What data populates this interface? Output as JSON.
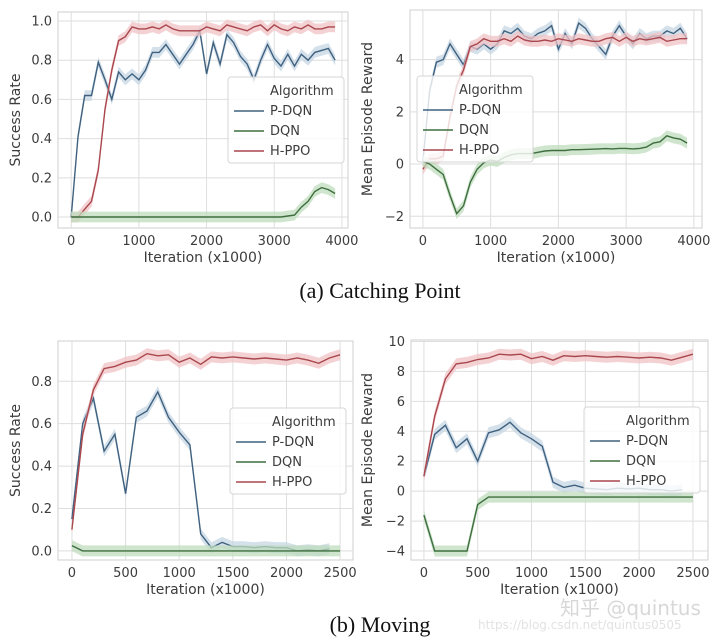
{
  "colors": {
    "P-DQN": {
      "line": "#3f617f",
      "band": "#c6d5e3"
    },
    "DQN": {
      "line": "#3e6e3e",
      "band": "#bfdcbd"
    },
    "H-PPO": {
      "line": "#a9474d",
      "band": "#f0c3c6"
    },
    "grid": "#dedede",
    "frame": "#cfcfcf"
  },
  "captions": {
    "a": "(a) Catching Point",
    "b": "(b) Moving"
  },
  "watermark": {
    "line1": "知乎 @quintus",
    "line2": "https://blog.csdn.net/quintus0505"
  },
  "chart_data": [
    {
      "type": "line",
      "subplot": "a-left",
      "xlabel": "Iteration (x1000)",
      "ylabel": "Success Rate",
      "xlim": [
        -195,
        4090
      ],
      "ylim": [
        -0.056,
        1.046
      ],
      "grid": true,
      "xticks": [
        0,
        1000,
        2000,
        3000,
        4000
      ],
      "xtick_labels": [
        "0",
        "1000",
        "2000",
        "3000",
        "4000"
      ],
      "yticks": [
        0,
        0.2,
        0.4,
        0.6,
        0.8,
        1.0
      ],
      "ytick_labels": [
        "0.0",
        "0.2",
        "0.4",
        "0.6",
        "0.8",
        "1.0"
      ],
      "legend": {
        "title": "Algorithm",
        "placement": "center-right"
      },
      "x": [
        0,
        100,
        200,
        300,
        400,
        500,
        600,
        700,
        800,
        900,
        1000,
        1100,
        1200,
        1300,
        1400,
        1500,
        1600,
        1700,
        1800,
        1900,
        2000,
        2100,
        2200,
        2300,
        2400,
        2500,
        2600,
        2700,
        2800,
        2900,
        3000,
        3100,
        3200,
        3300,
        3400,
        3500,
        3600,
        3700,
        3800,
        3900
      ],
      "series": [
        {
          "name": "P-DQN",
          "values": [
            0,
            0.41,
            0.62,
            0.62,
            0.79,
            0.7,
            0.6,
            0.74,
            0.7,
            0.73,
            0.7,
            0.75,
            0.84,
            0.84,
            0.88,
            0.83,
            0.78,
            0.83,
            0.88,
            0.95,
            0.73,
            0.89,
            0.78,
            0.93,
            0.89,
            0.82,
            0.78,
            0.7,
            0.8,
            0.88,
            0.81,
            0.77,
            0.83,
            0.77,
            0.83,
            0.8,
            0.84,
            0.85,
            0.86,
            0.8
          ]
        },
        {
          "name": "DQN",
          "values": [
            0,
            0,
            0,
            0,
            0,
            0,
            0,
            0,
            0,
            0,
            0,
            0,
            0,
            0,
            0,
            0,
            0,
            0,
            0,
            0,
            0,
            0,
            0,
            0,
            0,
            0,
            0,
            0,
            0,
            0,
            0,
            0,
            0.005,
            0.01,
            0.05,
            0.08,
            0.13,
            0.15,
            0.14,
            0.12
          ]
        },
        {
          "name": "H-PPO",
          "values": [
            0,
            0,
            0.04,
            0.08,
            0.24,
            0.55,
            0.75,
            0.9,
            0.92,
            0.97,
            0.96,
            0.96,
            0.97,
            0.96,
            0.98,
            0.96,
            0.95,
            0.95,
            0.95,
            0.95,
            0.97,
            0.96,
            0.95,
            0.98,
            0.97,
            0.96,
            0.95,
            0.97,
            0.98,
            0.95,
            0.98,
            0.96,
            0.95,
            0.97,
            0.96,
            0.98,
            0.96,
            0.96,
            0.97,
            0.97
          ]
        }
      ]
    },
    {
      "type": "line",
      "subplot": "a-right",
      "xlabel": "Iteration (x1000)",
      "ylabel": "Mean Episode Reward",
      "xlim": [
        -190,
        4120
      ],
      "ylim": [
        -2.45,
        5.9
      ],
      "grid": true,
      "xticks": [
        0,
        1000,
        2000,
        3000,
        4000
      ],
      "xtick_labels": [
        "0",
        "1000",
        "2000",
        "3000",
        "4000"
      ],
      "yticks": [
        -2,
        0,
        2,
        4
      ],
      "ytick_labels": [
        "−2",
        "0",
        "2",
        "4"
      ],
      "legend": {
        "title": "Algorithm",
        "placement": "center-left"
      },
      "x": [
        0,
        100,
        200,
        300,
        400,
        500,
        600,
        700,
        800,
        900,
        1000,
        1100,
        1200,
        1300,
        1400,
        1500,
        1600,
        1700,
        1800,
        1900,
        2000,
        2100,
        2200,
        2300,
        2400,
        2500,
        2600,
        2700,
        2800,
        2900,
        3000,
        3100,
        3200,
        3300,
        3400,
        3500,
        3600,
        3700,
        3800,
        3900
      ],
      "series": [
        {
          "name": "P-DQN",
          "values": [
            0.1,
            2.8,
            3.9,
            4.0,
            4.6,
            4.2,
            3.8,
            4.5,
            4.4,
            4.6,
            4.4,
            4.6,
            5.1,
            5.0,
            5.2,
            4.9,
            4.8,
            5.0,
            5.1,
            5.3,
            4.4,
            5.0,
            4.6,
            5.4,
            5.2,
            4.8,
            4.5,
            4.2,
            4.9,
            5.3,
            4.9,
            4.6,
            5.0,
            4.8,
            4.9,
            4.9,
            5.1,
            5.0,
            5.2,
            4.8
          ]
        },
        {
          "name": "DQN",
          "values": [
            0.1,
            0,
            -0.2,
            -0.4,
            -1.2,
            -1.9,
            -1.6,
            -0.7,
            -0.2,
            0.05,
            0.15,
            0.1,
            0.25,
            0.35,
            0.4,
            0.4,
            0.4,
            0.45,
            0.5,
            0.52,
            0.52,
            0.52,
            0.55,
            0.55,
            0.56,
            0.57,
            0.58,
            0.59,
            0.58,
            0.6,
            0.6,
            0.58,
            0.6,
            0.65,
            0.8,
            0.85,
            1.08,
            1.0,
            0.95,
            0.8
          ]
        },
        {
          "name": "H-PPO",
          "values": [
            -0.2,
            0.2,
            0.2,
            0.3,
            1.8,
            3.0,
            3.6,
            4.5,
            4.6,
            4.8,
            4.7,
            4.7,
            4.8,
            4.7,
            4.9,
            4.75,
            4.7,
            4.7,
            4.75,
            4.7,
            4.8,
            4.75,
            4.7,
            4.8,
            4.75,
            4.7,
            4.7,
            4.8,
            4.85,
            4.7,
            4.85,
            4.7,
            4.8,
            4.75,
            4.8,
            4.85,
            4.7,
            4.75,
            4.8,
            4.8
          ]
        }
      ]
    },
    {
      "type": "line",
      "subplot": "b-left",
      "xlabel": "Iteration (x1000)",
      "ylabel": "Success Rate",
      "xlim": [
        -130,
        2620
      ],
      "ylim": [
        -0.043,
        0.99
      ],
      "grid": true,
      "xticks": [
        0,
        500,
        1000,
        1500,
        2000,
        2500
      ],
      "xtick_labels": [
        "0",
        "500",
        "1000",
        "1500",
        "2000",
        "2500"
      ],
      "yticks": [
        0,
        0.2,
        0.4,
        0.6,
        0.8
      ],
      "ytick_labels": [
        "0.0",
        "0.2",
        "0.4",
        "0.6",
        "0.8"
      ],
      "legend": {
        "title": "Algorithm",
        "placement": "center-right"
      },
      "x": [
        0,
        100,
        200,
        300,
        400,
        500,
        600,
        700,
        800,
        900,
        1000,
        1100,
        1200,
        1300,
        1400,
        1500,
        1600,
        1700,
        1800,
        1900,
        2000,
        2100,
        2200,
        2300,
        2400,
        2500
      ],
      "series": [
        {
          "name": "P-DQN",
          "values": [
            0.15,
            0.6,
            0.72,
            0.47,
            0.55,
            0.27,
            0.63,
            0.66,
            0.75,
            0.63,
            0.56,
            0.5,
            0.08,
            0.015,
            0.04,
            0.02,
            0.02,
            0.015,
            0.02,
            0.015,
            0.015,
            0,
            0.005,
            0,
            0.01,
            null
          ]
        },
        {
          "name": "DQN",
          "values": [
            0.025,
            0,
            0,
            0,
            0,
            0,
            0,
            0,
            0,
            0,
            0,
            0,
            0,
            0,
            0,
            0,
            0,
            0,
            0,
            0,
            0,
            0,
            0,
            0,
            0,
            0
          ]
        },
        {
          "name": "H-PPO",
          "values": [
            0.1,
            0.55,
            0.76,
            0.86,
            0.87,
            0.89,
            0.9,
            0.93,
            0.92,
            0.925,
            0.89,
            0.91,
            0.88,
            0.915,
            0.91,
            0.915,
            0.91,
            0.905,
            0.91,
            0.905,
            0.9,
            0.91,
            0.9,
            0.885,
            0.91,
            0.925
          ]
        }
      ]
    },
    {
      "type": "line",
      "subplot": "b-right",
      "xlabel": "Iteration (x1000)",
      "ylabel": "Mean Episode Reward",
      "xlim": [
        -120,
        2640
      ],
      "ylim": [
        -4.6,
        10.1
      ],
      "grid": true,
      "xticks": [
        0,
        500,
        1000,
        1500,
        2000,
        2500
      ],
      "xtick_labels": [
        "0",
        "500",
        "1000",
        "1500",
        "2000",
        "2500"
      ],
      "yticks": [
        -4,
        -2,
        0,
        2,
        4,
        6,
        8,
        10
      ],
      "ytick_labels": [
        "−4",
        "−2",
        "0",
        "2",
        "4",
        "6",
        "8",
        "10"
      ],
      "legend": {
        "title": "Algorithm",
        "placement": "center-right"
      },
      "x": [
        0,
        100,
        200,
        300,
        400,
        500,
        600,
        700,
        800,
        900,
        1000,
        1100,
        1200,
        1300,
        1400,
        1500,
        1600,
        1700,
        1800,
        1900,
        2000,
        2100,
        2200,
        2300,
        2400,
        2500
      ],
      "series": [
        {
          "name": "P-DQN",
          "values": [
            1.0,
            3.8,
            4.4,
            2.9,
            3.5,
            2.0,
            3.9,
            4.1,
            4.6,
            3.9,
            3.5,
            3.0,
            0.6,
            0.25,
            0.4,
            0.2,
            0.15,
            0.1,
            0.2,
            0.15,
            0.2,
            0.1,
            0.1,
            0.0,
            0.1,
            null
          ]
        },
        {
          "name": "DQN",
          "values": [
            -1.6,
            -4,
            -4,
            -4,
            -4,
            -0.9,
            -0.4,
            -0.4,
            -0.4,
            -0.4,
            -0.4,
            -0.4,
            -0.4,
            -0.4,
            -0.4,
            -0.4,
            -0.4,
            -0.4,
            -0.4,
            -0.4,
            -0.4,
            -0.4,
            -0.4,
            -0.4,
            -0.4,
            -0.4
          ]
        },
        {
          "name": "H-PPO",
          "values": [
            1.0,
            5.0,
            7.5,
            8.5,
            8.6,
            8.8,
            8.9,
            9.15,
            9.1,
            9.15,
            8.85,
            9.0,
            8.75,
            9.05,
            9.0,
            9.05,
            9.0,
            8.95,
            9.0,
            8.95,
            8.9,
            8.95,
            8.9,
            8.75,
            8.95,
            9.15
          ]
        }
      ]
    }
  ]
}
